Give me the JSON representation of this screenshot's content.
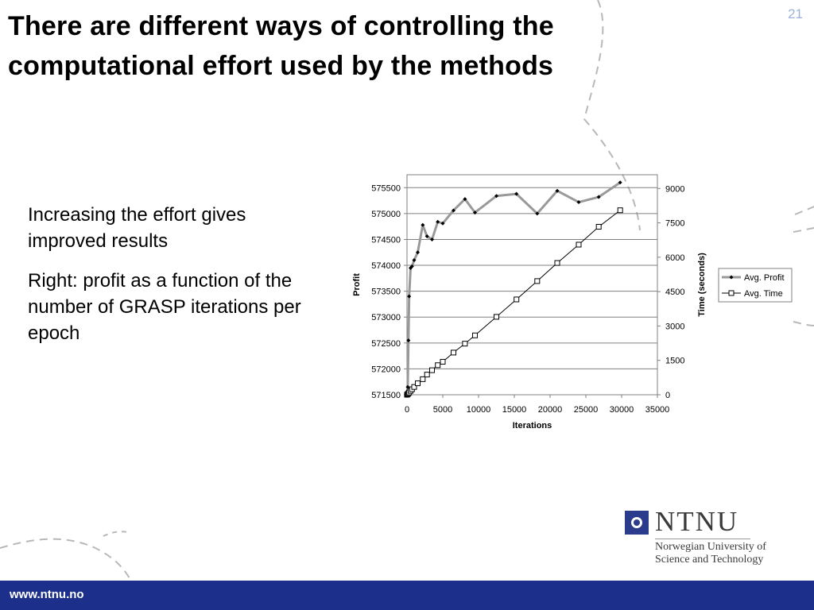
{
  "slide": {
    "number": "21",
    "title_line1": "There are different ways of controlling the",
    "title_line2": "computational effort used by the methods",
    "bullets": [
      "Increasing the effort gives improved results",
      "Right: profit as a function of the number of GRASP iterations per epoch"
    ]
  },
  "logo": {
    "name": "NTNU",
    "line1": "Norwegian University of",
    "line2": "Science and Technology"
  },
  "footer": {
    "url": "www.ntnu.no"
  },
  "colors": {
    "footer_bg": "#1c2f8a",
    "accent_light": "#9bb3d8",
    "profit_line": "#999999",
    "time_line": "#000000"
  },
  "chart_data": {
    "type": "line",
    "xlabel": "Iterations",
    "ylabel": "Profit",
    "y2label": "Time (seconds)",
    "xlim": [
      0,
      35000
    ],
    "ylim": [
      571500,
      575750
    ],
    "y2lim": [
      0,
      9600
    ],
    "xticks": [
      0,
      5000,
      10000,
      15000,
      20000,
      25000,
      30000,
      35000
    ],
    "yticks": [
      571500,
      572000,
      572500,
      573000,
      573500,
      574000,
      574500,
      575000,
      575500
    ],
    "y2ticks": [
      0,
      1500,
      3000,
      4500,
      6000,
      7500,
      9000
    ],
    "grid": "horizontal",
    "legend": "right",
    "series": [
      {
        "name": "Avg. Profit",
        "axis": "left",
        "marker": "diamond",
        "x": [
          0,
          100,
          200,
          300,
          500,
          700,
          1000,
          1500,
          2200,
          2800,
          3500,
          4300,
          5000,
          6500,
          8100,
          9500,
          12500,
          15300,
          18200,
          21000,
          24000,
          26800,
          29800
        ],
        "y": [
          571550,
          571650,
          572550,
          573400,
          573950,
          573980,
          574100,
          574250,
          574780,
          574560,
          574500,
          574840,
          574810,
          575060,
          575280,
          575020,
          575340,
          575380,
          575000,
          575440,
          575220,
          575320,
          575600
        ]
      },
      {
        "name": "Avg. Time",
        "axis": "right",
        "marker": "square",
        "x": [
          0,
          100,
          200,
          300,
          500,
          700,
          1000,
          1500,
          2200,
          2800,
          3500,
          4300,
          5000,
          6500,
          8100,
          9500,
          12500,
          15300,
          18200,
          21000,
          24000,
          26800,
          29800
        ],
        "y": [
          0,
          30,
          60,
          100,
          170,
          240,
          340,
          500,
          680,
          880,
          1070,
          1290,
          1440,
          1840,
          2230,
          2590,
          3400,
          4160,
          4960,
          5750,
          6550,
          7330,
          8050
        ]
      }
    ]
  }
}
